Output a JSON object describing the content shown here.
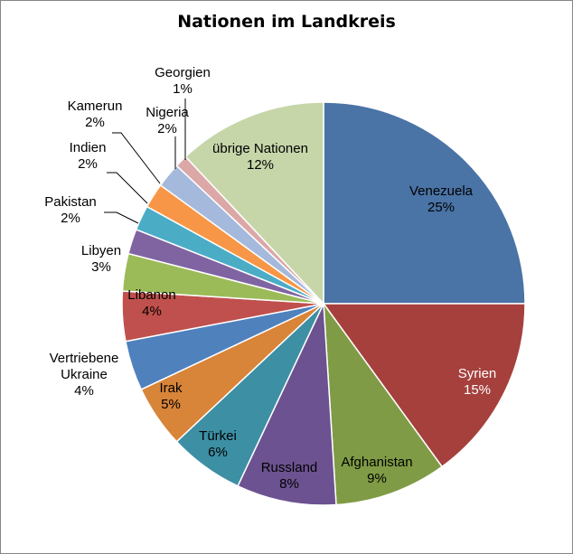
{
  "chart_data": {
    "type": "pie",
    "title": "Nationen im Landkreis",
    "legend": "none",
    "slices": [
      {
        "name": "Venezuela",
        "value": 25,
        "label": "25%",
        "color": "#4a73a6"
      },
      {
        "name": "Syrien",
        "value": 15,
        "label": "15%",
        "color": "#a6403d"
      },
      {
        "name": "Afghanistan",
        "value": 9,
        "label": "9%",
        "color": "#7f9b45"
      },
      {
        "name": "Russland",
        "value": 8,
        "label": "8%",
        "color": "#6c5290"
      },
      {
        "name": "Türkei",
        "value": 6,
        "label": "6%",
        "color": "#3d8fa4"
      },
      {
        "name": "Irak",
        "value": 5,
        "label": "5%",
        "color": "#d88439"
      },
      {
        "name": "Vertriebene Ukraine",
        "value": 4,
        "label": "4%",
        "color": "#4f81bd"
      },
      {
        "name": "Libanon",
        "value": 4,
        "label": "4%",
        "color": "#c0504d"
      },
      {
        "name": "Libyen",
        "value": 3,
        "label": "3%",
        "color": "#9bbb59"
      },
      {
        "name": "Pakistan",
        "value": 2,
        "label": "2%",
        "color": "#8064a2"
      },
      {
        "name": "Indien",
        "value": 2,
        "label": "2%",
        "color": "#4bacc6"
      },
      {
        "name": "Kamerun",
        "value": 2,
        "label": "2%",
        "color": "#f79646"
      },
      {
        "name": "Nigeria",
        "value": 2,
        "label": "2%",
        "color": "#a5b9dc"
      },
      {
        "name": "Georgien",
        "value": 1,
        "label": "1%",
        "color": "#dba8a7"
      },
      {
        "name": "übrige Nationen",
        "value": 12,
        "label": "12%",
        "color": "#c6d6a9"
      }
    ]
  }
}
